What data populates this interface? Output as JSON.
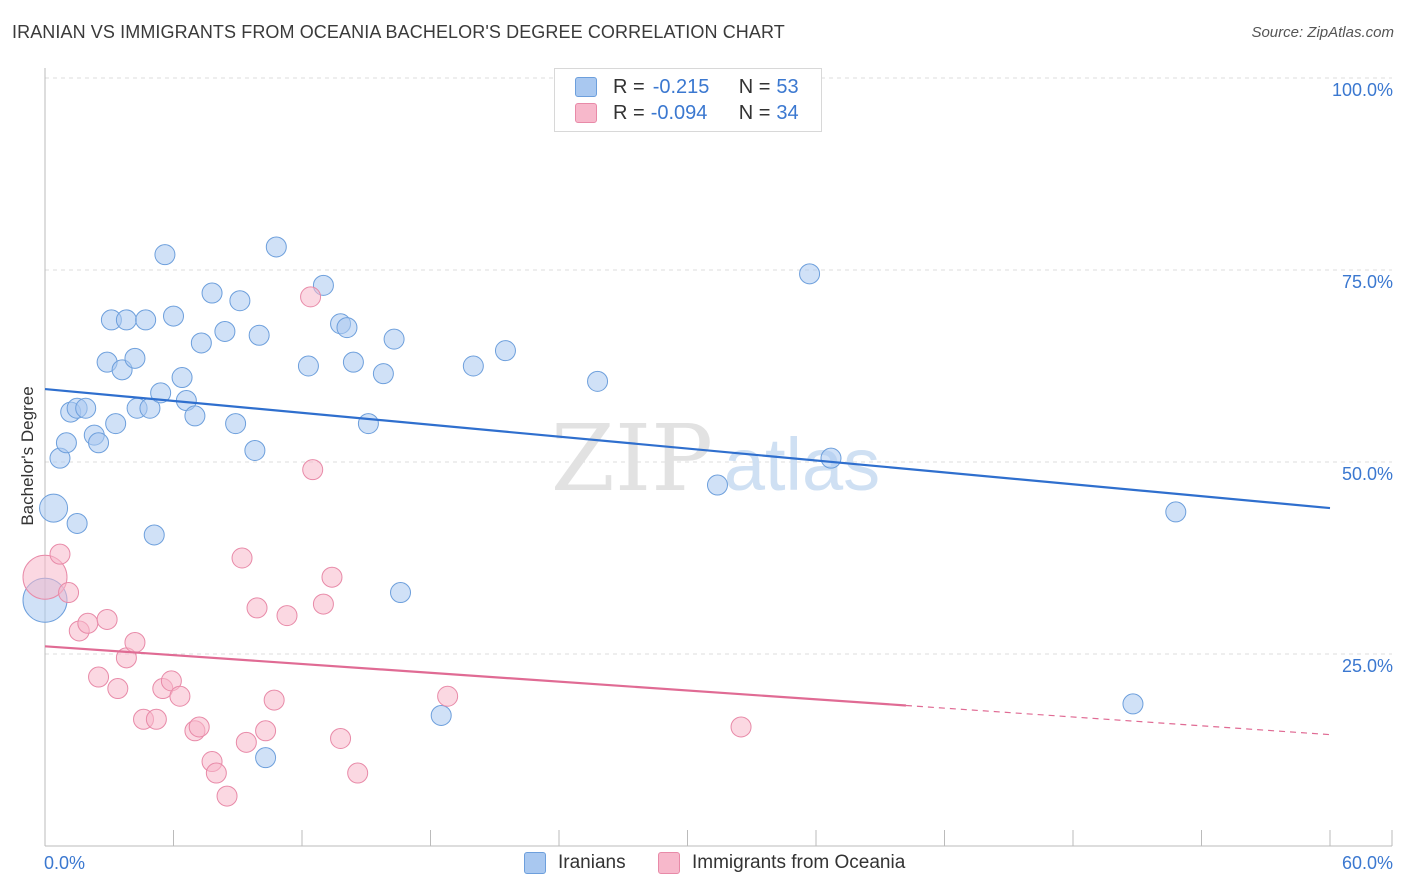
{
  "title": "IRANIAN VS IMMIGRANTS FROM OCEANIA BACHELOR'S DEGREE CORRELATION CHART",
  "source": "Source: ZipAtlas.com",
  "watermark": {
    "zip": "ZIP",
    "atlas": "atlas"
  },
  "legend_top": [
    {
      "r_label": "R = ",
      "r_value": "-0.215",
      "n_label": "N = ",
      "n_value": "53",
      "color": "#a9c8f0"
    },
    {
      "r_label": "R = ",
      "r_value": "-0.094",
      "n_label": "N = ",
      "n_value": "34",
      "color": "#f7b8cb"
    }
  ],
  "legend_bottom": [
    {
      "label": "Iranians",
      "color": "#a9c8f0"
    },
    {
      "label": "Immigrants from Oceania",
      "color": "#f7b8cb"
    }
  ],
  "chart_data": {
    "type": "scatter",
    "title": "IRANIAN VS IMMIGRANTS FROM OCEANIA BACHELOR'S DEGREE CORRELATION CHART",
    "xlabel": "",
    "ylabel": "Bachelor's Degree",
    "xlim": [
      0,
      60
    ],
    "ylim": [
      0,
      100
    ],
    "x_tick_labels": [
      "0.0%",
      "60.0%"
    ],
    "y_tick_labels": [
      {
        "value": 25,
        "label": "25.0%"
      },
      {
        "value": 50,
        "label": "50.0%"
      },
      {
        "value": 75,
        "label": "75.0%"
      },
      {
        "value": 100,
        "label": "100.0%"
      }
    ],
    "series": [
      {
        "name": "Iranians",
        "color": "#a9c8f0",
        "stroke": "#6d9fdc",
        "trend": {
          "x0": 0,
          "y0": 59.5,
          "x1": 60,
          "y1": 44.0,
          "color": "#2f6fce",
          "dash_from": null
        },
        "points": [
          [
            0.0,
            32.0,
            22
          ],
          [
            0.4,
            44.0,
            14
          ],
          [
            0.7,
            50.5,
            10
          ],
          [
            1.0,
            52.5,
            10
          ],
          [
            1.2,
            56.5,
            10
          ],
          [
            1.5,
            57.0,
            10
          ],
          [
            1.5,
            42.0,
            10
          ],
          [
            1.9,
            57.0,
            10
          ],
          [
            2.3,
            53.5,
            10
          ],
          [
            2.5,
            52.5,
            10
          ],
          [
            2.9,
            63.0,
            10
          ],
          [
            3.1,
            68.5,
            10
          ],
          [
            3.3,
            55.0,
            10
          ],
          [
            3.6,
            62.0,
            10
          ],
          [
            3.8,
            68.5,
            10
          ],
          [
            4.2,
            63.5,
            10
          ],
          [
            4.3,
            57.0,
            10
          ],
          [
            4.7,
            68.5,
            10
          ],
          [
            4.9,
            57.0,
            10
          ],
          [
            5.1,
            40.5,
            10
          ],
          [
            5.4,
            59.0,
            10
          ],
          [
            5.6,
            77.0,
            10
          ],
          [
            6.0,
            69.0,
            10
          ],
          [
            6.4,
            61.0,
            10
          ],
          [
            6.6,
            58.0,
            10
          ],
          [
            7.0,
            56.0,
            10
          ],
          [
            7.3,
            65.5,
            10
          ],
          [
            7.8,
            72.0,
            10
          ],
          [
            8.4,
            67.0,
            10
          ],
          [
            8.9,
            55.0,
            10
          ],
          [
            9.1,
            71.0,
            10
          ],
          [
            9.8,
            51.5,
            10
          ],
          [
            10.0,
            66.5,
            10
          ],
          [
            10.3,
            11.5,
            10
          ],
          [
            10.8,
            78.0,
            10
          ],
          [
            12.3,
            62.5,
            10
          ],
          [
            13.0,
            73.0,
            10
          ],
          [
            13.8,
            68.0,
            10
          ],
          [
            14.1,
            67.5,
            10
          ],
          [
            14.4,
            63.0,
            10
          ],
          [
            15.1,
            55.0,
            10
          ],
          [
            15.8,
            61.5,
            10
          ],
          [
            16.3,
            66.0,
            10
          ],
          [
            16.6,
            33.0,
            10
          ],
          [
            18.5,
            17.0,
            10
          ],
          [
            20.0,
            62.5,
            10
          ],
          [
            21.5,
            64.5,
            10
          ],
          [
            25.8,
            60.5,
            10
          ],
          [
            31.4,
            47.0,
            10
          ],
          [
            35.7,
            74.5,
            10
          ],
          [
            36.7,
            50.5,
            10
          ],
          [
            50.8,
            18.5,
            10
          ],
          [
            52.8,
            43.5,
            10
          ]
        ]
      },
      {
        "name": "Immigrants from Oceania",
        "color": "#f7b8cb",
        "stroke": "#e88aa8",
        "trend": {
          "x0": 0,
          "y0": 26.0,
          "x1": 60,
          "y1": 14.5,
          "color": "#e06b94",
          "dash_from": 40.2
        },
        "points": [
          [
            0.0,
            35.0,
            22
          ],
          [
            0.7,
            38.0,
            10
          ],
          [
            1.1,
            33.0,
            10
          ],
          [
            1.6,
            28.0,
            10
          ],
          [
            2.0,
            29.0,
            10
          ],
          [
            2.5,
            22.0,
            10
          ],
          [
            2.9,
            29.5,
            10
          ],
          [
            3.4,
            20.5,
            10
          ],
          [
            3.8,
            24.5,
            10
          ],
          [
            4.2,
            26.5,
            10
          ],
          [
            4.6,
            16.5,
            10
          ],
          [
            5.2,
            16.5,
            10
          ],
          [
            5.5,
            20.5,
            10
          ],
          [
            5.9,
            21.5,
            10
          ],
          [
            6.3,
            19.5,
            10
          ],
          [
            7.0,
            15.0,
            10
          ],
          [
            7.2,
            15.5,
            10
          ],
          [
            7.8,
            11.0,
            10
          ],
          [
            8.0,
            9.5,
            10
          ],
          [
            8.5,
            6.5,
            10
          ],
          [
            9.2,
            37.5,
            10
          ],
          [
            9.4,
            13.5,
            10
          ],
          [
            9.9,
            31.0,
            10
          ],
          [
            10.3,
            15.0,
            10
          ],
          [
            10.7,
            19.0,
            10
          ],
          [
            11.3,
            30.0,
            10
          ],
          [
            12.4,
            71.5,
            10
          ],
          [
            12.5,
            49.0,
            10
          ],
          [
            13.0,
            31.5,
            10
          ],
          [
            13.4,
            35.0,
            10
          ],
          [
            13.8,
            14.0,
            10
          ],
          [
            14.6,
            9.5,
            10
          ],
          [
            18.8,
            19.5,
            10
          ],
          [
            32.5,
            15.5,
            10
          ]
        ]
      }
    ]
  }
}
